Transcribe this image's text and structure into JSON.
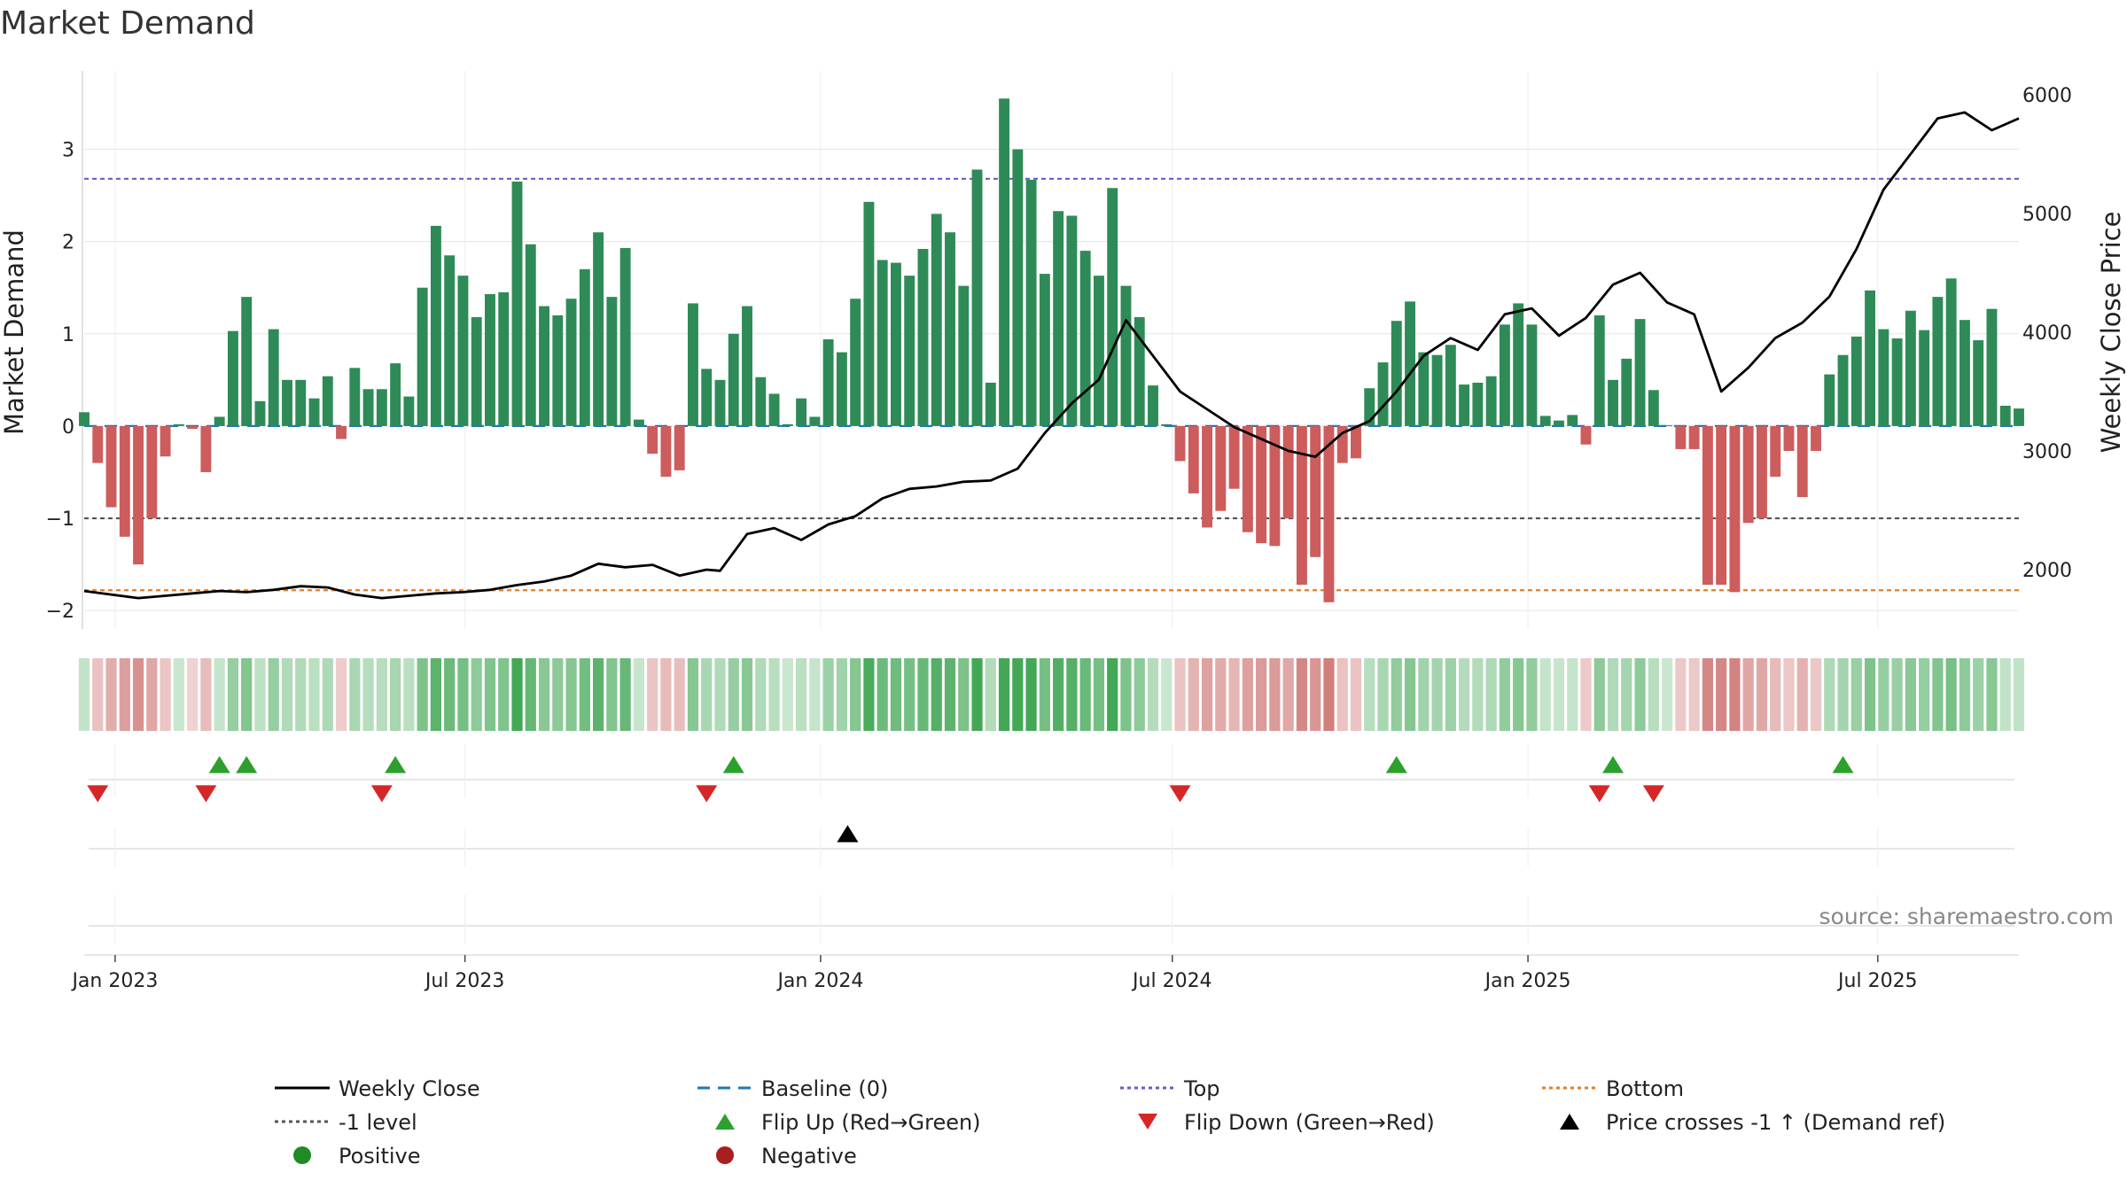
{
  "chart_data": {
    "type": "bar",
    "title": "Market Demand",
    "ylabel_left": "Market Demand",
    "ylabel_right": "Weekly Close Price",
    "left_axis": {
      "ylim": [
        -2.2,
        3.85
      ],
      "ticks": [
        -2,
        -1,
        0,
        1,
        2,
        3
      ],
      "tick_labels": [
        "−2",
        "−1",
        "0",
        "1",
        "2",
        "3"
      ]
    },
    "right_axis": {
      "ylim": [
        1500,
        6200
      ],
      "ticks": [
        2000,
        3000,
        4000,
        5000,
        6000
      ],
      "tick_labels": [
        "2000",
        "3000",
        "4000",
        "5000",
        "6000"
      ]
    },
    "x_axis": {
      "start": "2022-12-16",
      "end": "2025-09-12",
      "tick_dates": [
        "2023-01-01",
        "2023-07-01",
        "2024-01-01",
        "2024-07-01",
        "2025-01-01",
        "2025-07-01"
      ],
      "tick_labels": [
        "Jan 2023",
        "Jul 2023",
        "Jan 2024",
        "Jul 2024",
        "Jan 2025",
        "Jul 2025"
      ]
    },
    "reference_lines": {
      "top": 2.68,
      "bottom": -1.78,
      "minus_one": -1,
      "baseline": 0
    },
    "demand_series": {
      "name": "Market Demand",
      "week_start": "2022-12-16",
      "week_step_days": 7,
      "values": [
        0.15,
        -0.4,
        -0.88,
        -1.2,
        -1.5,
        -1.0,
        -0.33,
        0.02,
        -0.03,
        -0.5,
        0.1,
        1.03,
        1.4,
        0.27,
        1.05,
        0.5,
        0.5,
        0.3,
        0.54,
        -0.14,
        0.63,
        0.4,
        0.4,
        0.68,
        0.32,
        1.5,
        2.17,
        1.85,
        1.63,
        1.18,
        1.43,
        1.45,
        2.65,
        1.97,
        1.3,
        1.2,
        1.38,
        1.7,
        2.1,
        1.4,
        1.93,
        0.07,
        -0.3,
        -0.55,
        -0.48,
        1.33,
        0.62,
        0.5,
        1.0,
        1.3,
        0.53,
        0.35,
        0.02,
        0.3,
        0.1,
        0.94,
        0.8,
        1.38,
        2.43,
        1.8,
        1.77,
        1.63,
        1.92,
        2.3,
        2.1,
        1.52,
        2.78,
        0.47,
        3.55,
        3.0,
        2.67,
        1.65,
        2.33,
        2.28,
        1.9,
        1.63,
        2.58,
        1.52,
        1.18,
        0.44,
        0.02,
        -0.38,
        -0.73,
        -1.1,
        -0.92,
        -0.68,
        -1.15,
        -1.27,
        -1.3,
        -1.0,
        -1.72,
        -1.42,
        -1.91,
        -0.4,
        -0.35,
        0.41,
        0.69,
        1.14,
        1.35,
        0.8,
        0.77,
        0.88,
        0.45,
        0.47,
        0.54,
        1.1,
        1.33,
        1.1,
        0.11,
        0.06,
        0.12,
        -0.2,
        1.2,
        0.5,
        0.73,
        1.16,
        0.39,
        0.01,
        -0.25,
        -0.25,
        -1.72,
        -1.72,
        -1.8,
        -1.05,
        -1.0,
        -0.55,
        -0.27,
        -0.77,
        -0.27,
        0.56,
        0.77,
        0.97,
        1.47,
        1.05,
        0.95,
        1.25,
        1.04,
        1.4,
        1.6,
        1.15,
        0.93,
        1.27,
        0.22,
        0.19
      ]
    },
    "price_series": {
      "name": "Weekly Close",
      "points": [
        [
          "2022-12-16",
          1820
        ],
        [
          "2022-12-30",
          1790
        ],
        [
          "2023-01-13",
          1760
        ],
        [
          "2023-01-27",
          1780
        ],
        [
          "2023-02-10",
          1800
        ],
        [
          "2023-02-24",
          1820
        ],
        [
          "2023-03-10",
          1810
        ],
        [
          "2023-03-24",
          1830
        ],
        [
          "2023-04-07",
          1860
        ],
        [
          "2023-04-21",
          1850
        ],
        [
          "2023-05-05",
          1790
        ],
        [
          "2023-05-19",
          1760
        ],
        [
          "2023-06-02",
          1780
        ],
        [
          "2023-06-16",
          1800
        ],
        [
          "2023-06-30",
          1810
        ],
        [
          "2023-07-14",
          1830
        ],
        [
          "2023-07-28",
          1870
        ],
        [
          "2023-08-11",
          1900
        ],
        [
          "2023-08-25",
          1950
        ],
        [
          "2023-09-08",
          2050
        ],
        [
          "2023-09-22",
          2020
        ],
        [
          "2023-10-06",
          2040
        ],
        [
          "2023-10-20",
          1950
        ],
        [
          "2023-11-03",
          2000
        ],
        [
          "2023-11-10",
          1990
        ],
        [
          "2023-11-24",
          2300
        ],
        [
          "2023-12-08",
          2350
        ],
        [
          "2023-12-22",
          2250
        ],
        [
          "2024-01-05",
          2380
        ],
        [
          "2024-01-19",
          2450
        ],
        [
          "2024-02-02",
          2600
        ],
        [
          "2024-02-16",
          2680
        ],
        [
          "2024-03-01",
          2700
        ],
        [
          "2024-03-15",
          2740
        ],
        [
          "2024-03-29",
          2750
        ],
        [
          "2024-04-12",
          2850
        ],
        [
          "2024-04-26",
          3150
        ],
        [
          "2024-05-10",
          3400
        ],
        [
          "2024-05-24",
          3600
        ],
        [
          "2024-06-07",
          4100
        ],
        [
          "2024-06-21",
          3800
        ],
        [
          "2024-07-05",
          3500
        ],
        [
          "2024-07-19",
          3350
        ],
        [
          "2024-08-02",
          3200
        ],
        [
          "2024-08-16",
          3100
        ],
        [
          "2024-08-30",
          3000
        ],
        [
          "2024-09-13",
          2950
        ],
        [
          "2024-09-27",
          3150
        ],
        [
          "2024-10-11",
          3250
        ],
        [
          "2024-10-25",
          3500
        ],
        [
          "2024-11-08",
          3800
        ],
        [
          "2024-11-22",
          3950
        ],
        [
          "2024-12-06",
          3850
        ],
        [
          "2024-12-20",
          4150
        ],
        [
          "2025-01-03",
          4200
        ],
        [
          "2025-01-17",
          3970
        ],
        [
          "2025-01-31",
          4120
        ],
        [
          "2025-02-14",
          4400
        ],
        [
          "2025-02-28",
          4500
        ],
        [
          "2025-03-14",
          4250
        ],
        [
          "2025-03-28",
          4150
        ],
        [
          "2025-04-11",
          3500
        ],
        [
          "2025-04-25",
          3700
        ],
        [
          "2025-05-09",
          3950
        ],
        [
          "2025-05-23",
          4080
        ],
        [
          "2025-06-06",
          4300
        ],
        [
          "2025-06-20",
          4700
        ],
        [
          "2025-07-04",
          5200
        ],
        [
          "2025-07-18",
          5500
        ],
        [
          "2025-08-01",
          5800
        ],
        [
          "2025-08-15",
          5850
        ],
        [
          "2025-08-29",
          5700
        ],
        [
          "2025-09-12",
          5800
        ]
      ]
    },
    "flip_up_dates": [
      "2023-02-24",
      "2023-03-10",
      "2023-05-26",
      "2023-11-17",
      "2024-10-25",
      "2025-02-14",
      "2025-06-13"
    ],
    "flip_down_dates": [
      "2022-12-23",
      "2023-02-17",
      "2023-05-19",
      "2023-11-03",
      "2024-07-05",
      "2025-02-07",
      "2025-03-07"
    ],
    "price_cross_dates": [
      "2024-01-15"
    ],
    "strip_colors": {
      "positive": "#2f9e44",
      "negative": "#c0504d"
    },
    "colors": {
      "positive_bar": "#2e8b57",
      "negative_bar": "#cd5c5c",
      "price_line": "#000000",
      "baseline": "#1f77b4",
      "top_line": "#6a5acd",
      "bottom_line": "#e67e22",
      "minus_one_line": "#555555",
      "flip_up": "#2ca02c",
      "flip_down": "#d62728",
      "price_cross": "#000000",
      "positive_dot": "#1f8b24",
      "negative_dot": "#a91e1e"
    },
    "source": "source: sharemaestro.com",
    "legend": [
      {
        "label": "Weekly Close",
        "kind": "line",
        "color": "#000000",
        "dash": ""
      },
      {
        "label": "Baseline (0)",
        "kind": "line",
        "color": "#1f77b4",
        "dash": "14,9"
      },
      {
        "label": "Top",
        "kind": "line",
        "color": "#6a5acd",
        "dash": "4,4"
      },
      {
        "label": "Bottom",
        "kind": "line",
        "color": "#e67e22",
        "dash": "4,4"
      },
      {
        "label": "-1 level",
        "kind": "line",
        "color": "#555555",
        "dash": "4,4"
      },
      {
        "label": "Flip Up (Red→Green)",
        "kind": "up",
        "color": "#2ca02c"
      },
      {
        "label": "Flip Down (Green→Red)",
        "kind": "down",
        "color": "#d62728"
      },
      {
        "label": "Price crosses -1 ↑ (Demand ref)",
        "kind": "up",
        "color": "#000000"
      },
      {
        "label": "Positive",
        "kind": "dot",
        "color": "#1f8b24"
      },
      {
        "label": "Negative",
        "kind": "dot",
        "color": "#a91e1e"
      }
    ]
  }
}
